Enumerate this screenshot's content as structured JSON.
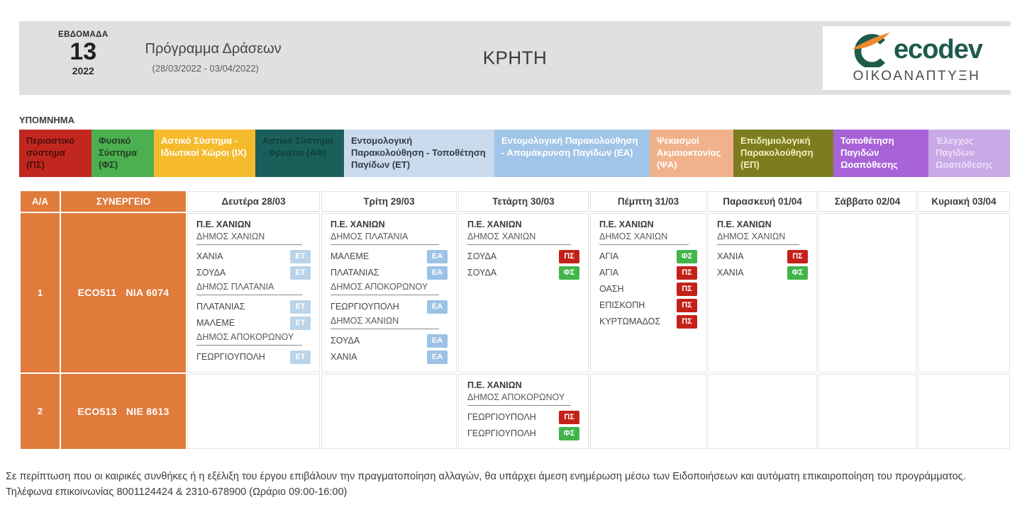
{
  "header": {
    "week_label": "ΕΒΔΟΜΑΔΑ",
    "week_number": "13",
    "year": "2022",
    "program_title": "Πρόγραμμα Δράσεων",
    "date_range": "(28/03/2022 - 03/04/2022)",
    "region": "ΚΡΗΤΗ",
    "logo": {
      "brand": "ecodev",
      "subtitle": "ΟΙΚΟΑΝΑΠΤΥΞΗ",
      "icon": "ecodev-swoosh-icon",
      "brand_color": "#1d5b4c",
      "swoosh_color": "#ee8a2b"
    }
  },
  "legend": {
    "title": "ΥΠΟΜΝΗΜΑ",
    "items": [
      {
        "label": "Περιαστικό σύστημα (ΠΣ)",
        "bg": "#c1271f",
        "fg": "#4c0d08"
      },
      {
        "label": "Φυσικό Σύστημα (ΦΣ)",
        "bg": "#4caf50",
        "fg": "#233f24"
      },
      {
        "label": "Αστικό Σύστημα - Ιδιωτικοί Χώροι (ΙΧ)",
        "bg": "#f5bb2d",
        "fg": "#ffffff"
      },
      {
        "label": "Αστικό Σύστημα - Φρεάτια (ΑΦ)",
        "bg": "#1b5f5b",
        "fg": "#0d403d"
      },
      {
        "label": "Εντομολογική Παρακολούθηση - Τοποθέτηση Παγίδων (ΕΤ)",
        "bg": "#cadbee",
        "fg": "#323d47"
      },
      {
        "label": "Εντομολογική Παρακολούθηση - Απομάκρυνση Παγίδων (ΕΑ)",
        "bg": "#a0c5e8",
        "fg": "#ffffff"
      },
      {
        "label": "Ψεκασμοί Ακμαιοκτονίας (ΨΑ)",
        "bg": "#f1b18b",
        "fg": "#ffffff"
      },
      {
        "label": "Επιδημιολογική Παρακολούθηση (ΕΠ)",
        "bg": "#7d7d20",
        "fg": "#f1f1bd"
      },
      {
        "label": "Τοποθέτηση Παγιδών Ωοαπόθεσης",
        "bg": "#a863d8",
        "fg": "#ffffff"
      },
      {
        "label": "Έλεγχος Παγίδων Ωοαπόθεσης",
        "bg": "#c9a9e6",
        "fg": "#ecdff8"
      }
    ]
  },
  "badges": {
    "ΕΤ": {
      "bg": "#b9d4ea",
      "fg": "#ffffff"
    },
    "ΕΑ": {
      "bg": "#9cc2e5",
      "fg": "#ffffff"
    },
    "ΠΣ": {
      "bg": "#c4211a",
      "fg": "#ffffff"
    },
    "ΦΣ": {
      "bg": "#41b549",
      "fg": "#ffffff"
    }
  },
  "table": {
    "columns": [
      "Α/Α",
      "ΣΥΝΕΡΓΕΙΟ",
      "Δευτέρα 28/03",
      "Τρίτη 29/03",
      "Τετάρτη 30/03",
      "Πέμπτη 31/03",
      "Παρασκευή 01/04",
      "Σάββατο 02/04",
      "Κυριακή 03/04"
    ],
    "rows": [
      {
        "index": "1",
        "crew": {
          "code": "ECO511",
          "vehicle": "NIA 6074"
        },
        "days": [
          [
            {
              "type": "pe",
              "text": "Π.Ε. ΧΑΝΙΩΝ"
            },
            {
              "type": "group",
              "text": "ΔΗΜΟΣ ΧΑΝΙΩΝ"
            },
            {
              "type": "loc",
              "text": "ΧΑΝΙΑ",
              "tag": "ΕΤ"
            },
            {
              "type": "loc",
              "text": "ΣΟΥΔΑ",
              "tag": "ΕΤ"
            },
            {
              "type": "group",
              "text": "ΔΗΜΟΣ ΠΛΑΤΑΝΙΑ"
            },
            {
              "type": "loc",
              "text": "ΠΛΑΤΑΝΙΑΣ",
              "tag": "ΕΤ"
            },
            {
              "type": "loc",
              "text": "ΜΑΛΕΜΕ",
              "tag": "ΕΤ"
            },
            {
              "type": "group",
              "text": "ΔΗΜΟΣ ΑΠΟΚΟΡΩΝΟΥ"
            },
            {
              "type": "loc",
              "text": "ΓΕΩΡΓΙΟΥΠΟΛΗ",
              "tag": "ΕΤ"
            }
          ],
          [
            {
              "type": "pe",
              "text": "Π.Ε. ΧΑΝΙΩΝ"
            },
            {
              "type": "group",
              "text": "ΔΗΜΟΣ ΠΛΑΤΑΝΙΑ"
            },
            {
              "type": "loc",
              "text": "ΜΑΛΕΜΕ",
              "tag": "ΕΑ"
            },
            {
              "type": "loc",
              "text": "ΠΛΑΤΑΝΙΑΣ",
              "tag": "ΕΑ"
            },
            {
              "type": "group",
              "text": "ΔΗΜΟΣ ΑΠΟΚΟΡΩΝΟΥ"
            },
            {
              "type": "loc",
              "text": "ΓΕΩΡΓΙΟΥΠΟΛΗ",
              "tag": "ΕΑ"
            },
            {
              "type": "group",
              "text": "ΔΗΜΟΣ ΧΑΝΙΩΝ"
            },
            {
              "type": "loc",
              "text": "ΣΟΥΔΑ",
              "tag": "ΕΑ"
            },
            {
              "type": "loc",
              "text": "ΧΑΝΙΑ",
              "tag": "ΕΑ"
            }
          ],
          [
            {
              "type": "pe",
              "text": "Π.Ε. ΧΑΝΙΩΝ"
            },
            {
              "type": "group",
              "text": "ΔΗΜΟΣ ΧΑΝΙΩΝ"
            },
            {
              "type": "loc",
              "text": "ΣΟΥΔΑ",
              "tag": "ΠΣ"
            },
            {
              "type": "loc",
              "text": "ΣΟΥΔΑ",
              "tag": "ΦΣ"
            }
          ],
          [
            {
              "type": "pe",
              "text": "Π.Ε. ΧΑΝΙΩΝ"
            },
            {
              "type": "group",
              "text": "ΔΗΜΟΣ ΧΑΝΙΩΝ"
            },
            {
              "type": "loc",
              "text": "ΑΓΙΑ",
              "tag": "ΦΣ"
            },
            {
              "type": "loc",
              "text": "ΑΓΙΑ",
              "tag": "ΠΣ"
            },
            {
              "type": "loc",
              "text": "ΟΑΣΗ",
              "tag": "ΠΣ"
            },
            {
              "type": "loc",
              "text": "ΕΠΙΣΚΟΠΗ",
              "tag": "ΠΣ"
            },
            {
              "type": "loc",
              "text": "ΚΥΡΤΩΜΑΔΟΣ",
              "tag": "ΠΣ"
            }
          ],
          [
            {
              "type": "pe",
              "text": "Π.Ε. ΧΑΝΙΩΝ"
            },
            {
              "type": "group",
              "text": "ΔΗΜΟΣ ΧΑΝΙΩΝ"
            },
            {
              "type": "loc",
              "text": "ΧΑΝΙΑ",
              "tag": "ΠΣ"
            },
            {
              "type": "loc",
              "text": "ΧΑΝΙΑ",
              "tag": "ΦΣ"
            }
          ],
          [],
          []
        ]
      },
      {
        "index": "2",
        "crew": {
          "code": "ECO513",
          "vehicle": "NIE 8613"
        },
        "days": [
          [],
          [],
          [
            {
              "type": "pe",
              "text": "Π.Ε. ΧΑΝΙΩΝ"
            },
            {
              "type": "group",
              "text": "ΔΗΜΟΣ ΑΠΟΚΟΡΩΝΟΥ"
            },
            {
              "type": "loc",
              "text": "ΓΕΩΡΓΙΟΥΠΟΛΗ",
              "tag": "ΠΣ"
            },
            {
              "type": "loc",
              "text": "ΓΕΩΡΓΙΟΥΠΟΛΗ",
              "tag": "ΦΣ"
            }
          ],
          [],
          [],
          [],
          []
        ]
      }
    ]
  },
  "footer": {
    "line1": "Σε περίπτωση που οι καιρικές συνθήκες ή η εξέλιξη του έργου επιβάλουν την πραγματοποίηση αλλαγών, θα υπάρχει άμεση ενημέρωση μέσω των Ειδοποιήσεων και αυτόματη επικαιροποίηση του προγράμματος.",
    "line2": "Τηλέφωνα επικοινωνίας 8001124424 & 2310-678900 (Ωράριο 09:00-16:00)"
  },
  "colors": {
    "accent_orange": "#e07b3b",
    "header_band": "#e0e0e0",
    "table_border": "#e3e3e3"
  }
}
